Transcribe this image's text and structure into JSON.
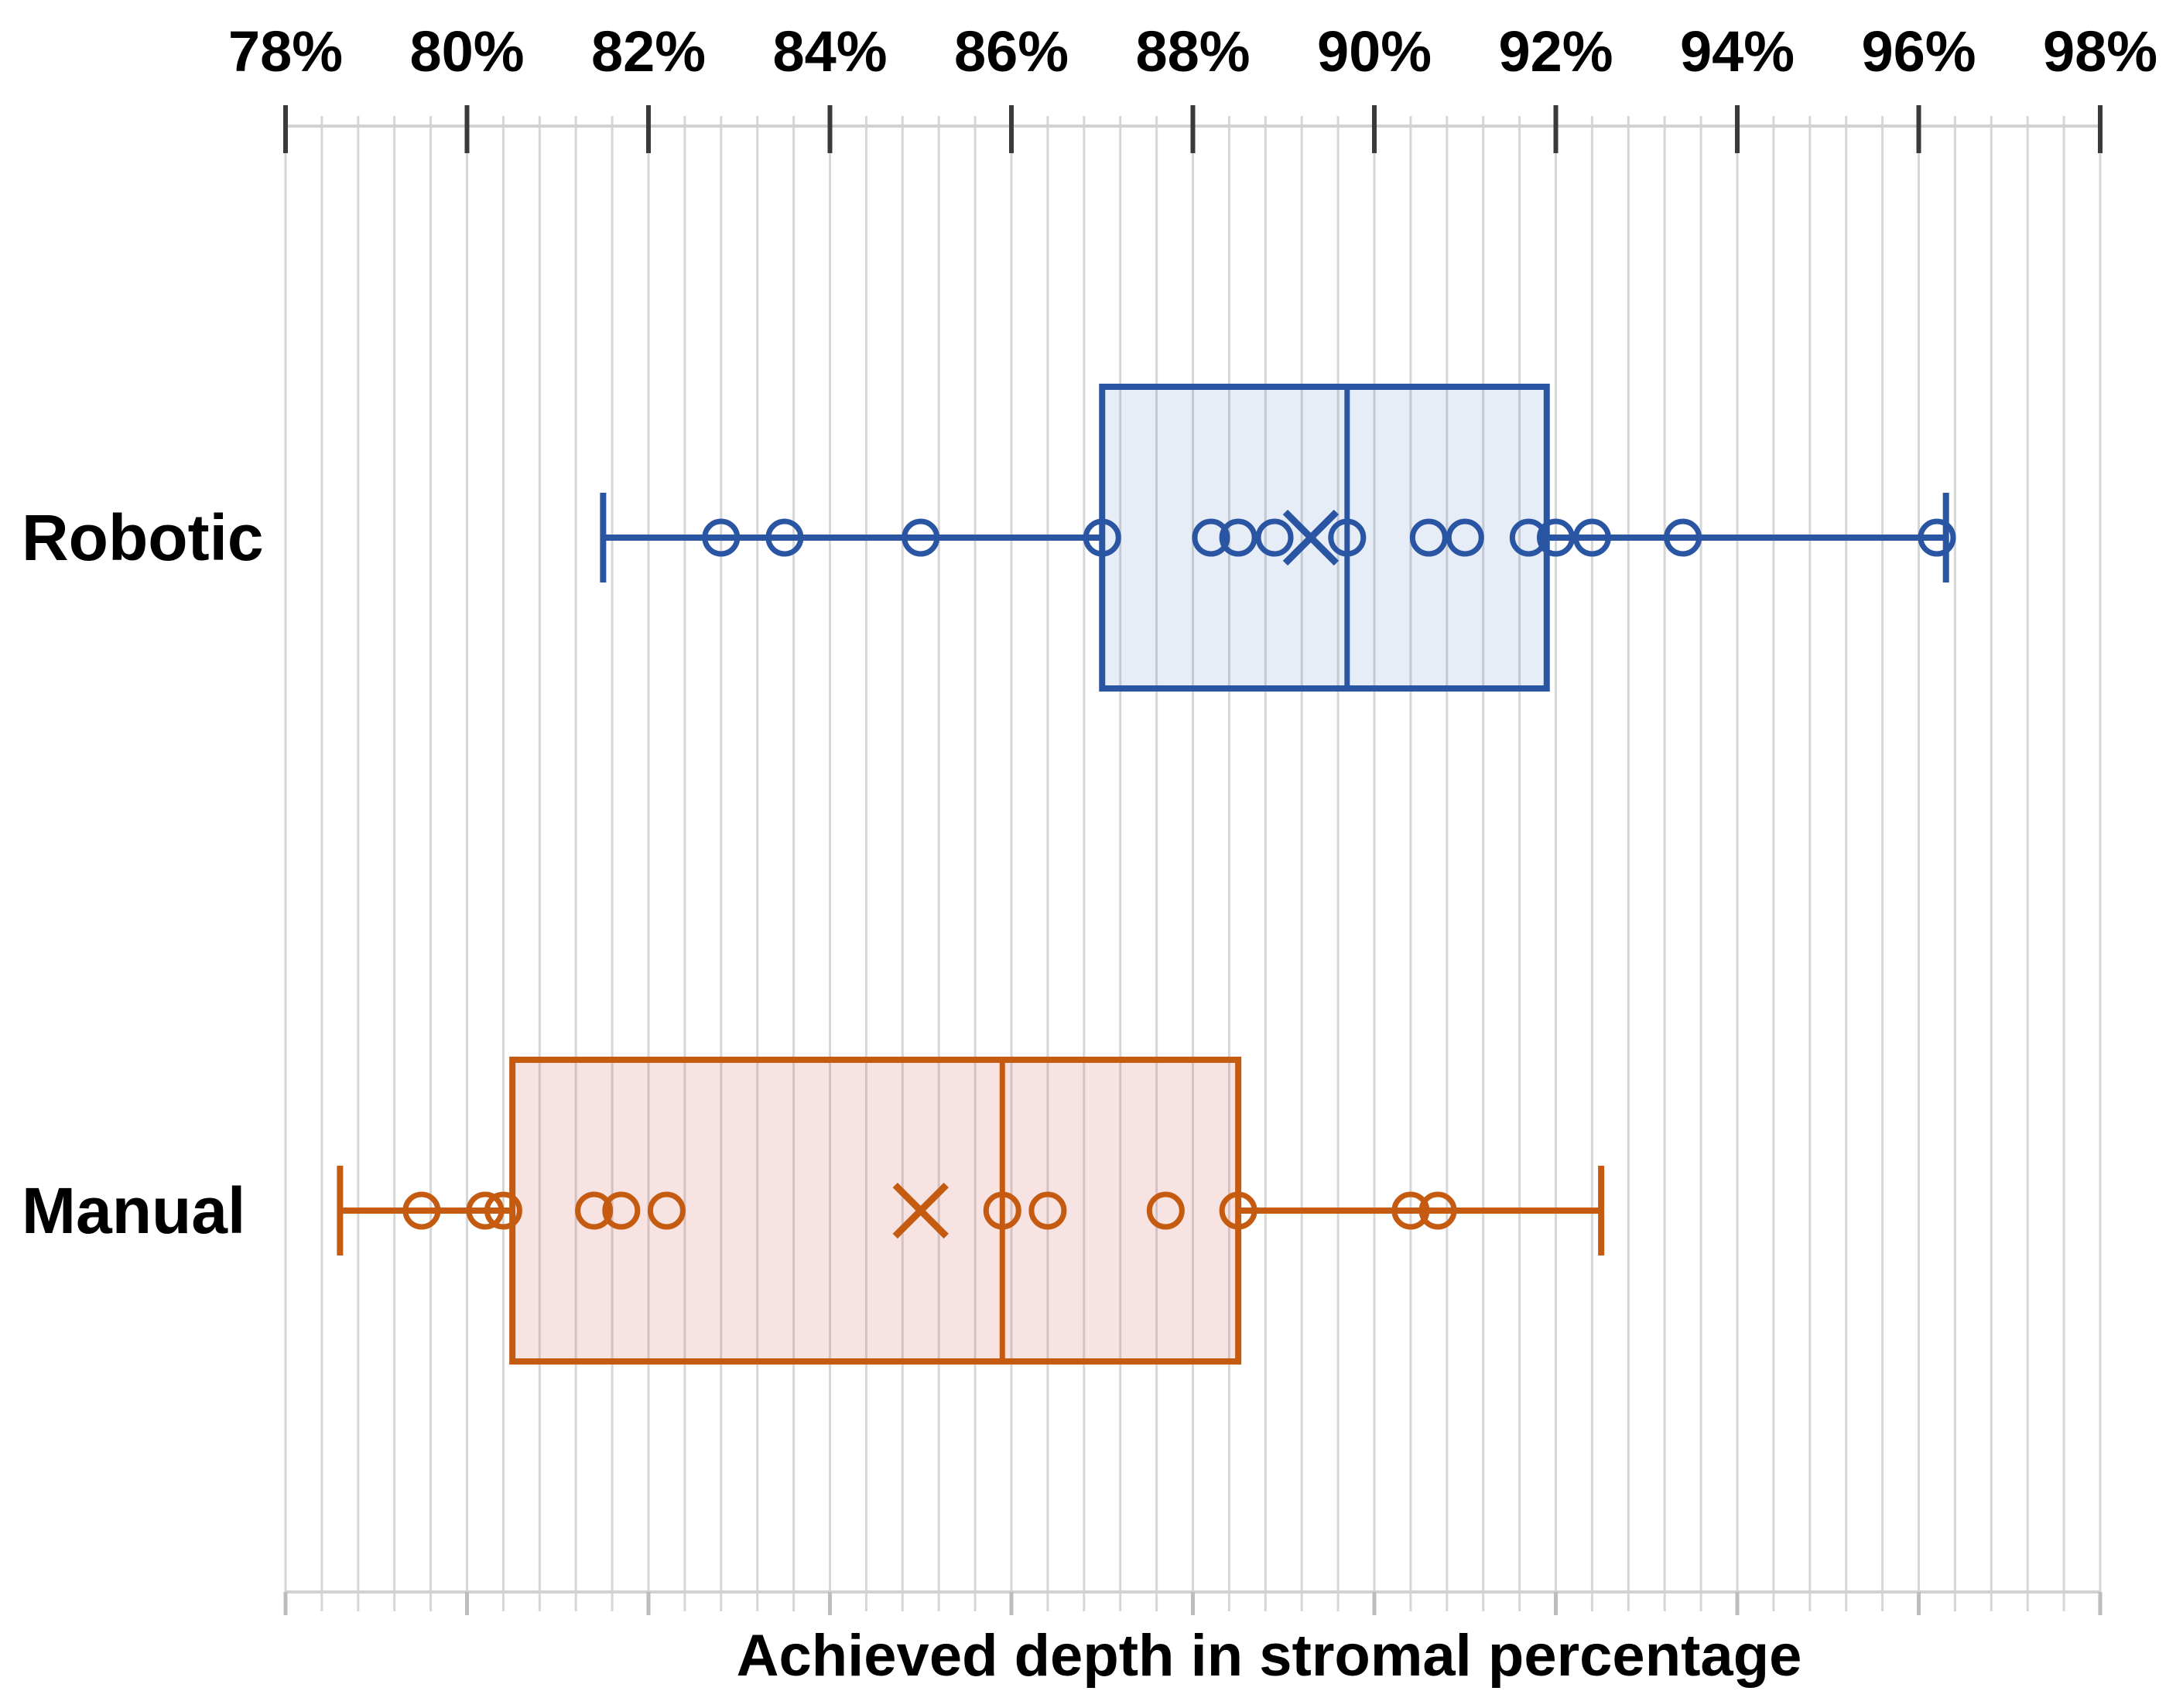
{
  "chart_data": {
    "type": "boxplot",
    "orientation": "horizontal",
    "xlabel": "Achieved depth in stromal percentage",
    "axis": {
      "position": "top",
      "min": 78,
      "max": 98,
      "major_step": 2,
      "minor_step": 0.4,
      "tick_labels": [
        "78%",
        "80%",
        "82%",
        "84%",
        "86%",
        "88%",
        "90%",
        "92%",
        "94%",
        "96%",
        "98%"
      ],
      "grid": true
    },
    "categories": [
      "Robotic",
      "Manual"
    ],
    "series": [
      {
        "name": "Robotic",
        "color": "#2a55a2",
        "fill": "rgba(68,114,196,0.13)",
        "whisker_low": 81.5,
        "q1": 87.0,
        "median": 89.7,
        "q3": 91.9,
        "whisker_high": 96.3,
        "mean": 89.3,
        "points": [
          82.8,
          83.5,
          85.0,
          87.0,
          88.2,
          88.5,
          88.9,
          89.7,
          90.6,
          91.0,
          91.7,
          92.0,
          92.4,
          93.4,
          96.2
        ]
      },
      {
        "name": "Manual",
        "color": "#c55a11",
        "fill": "rgba(217,102,102,0.18)",
        "whisker_low": 78.6,
        "q1": 80.5,
        "median": 85.9,
        "q3": 88.5,
        "whisker_high": 92.5,
        "mean": 85.0,
        "points": [
          79.5,
          80.2,
          80.4,
          81.4,
          81.7,
          82.2,
          85.9,
          86.4,
          87.7,
          88.5,
          90.4,
          90.7
        ]
      }
    ],
    "legend": false,
    "colors": {
      "gridline": "#d6d6d6",
      "axis_line": "#d2d2d2",
      "major_tick_top": "#3a3a3a",
      "major_tick_bottom": "#bdbdbd",
      "text": "#000000",
      "background": "#ffffff"
    }
  }
}
